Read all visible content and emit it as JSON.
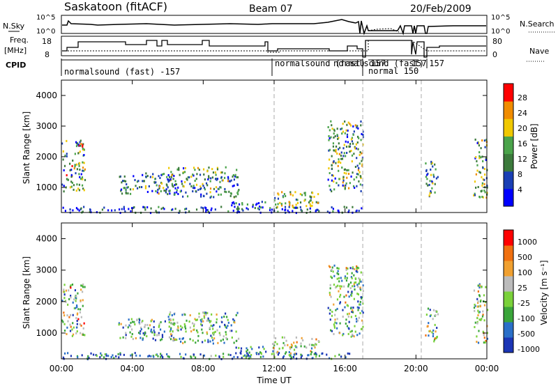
{
  "header": {
    "station": "Saskatoon (fitACF)",
    "beam": "Beam 07",
    "date": "20/Feb/2009"
  },
  "top_panels": {
    "nsky_label": "N.Sky",
    "nsky_ticks": [
      "10^5",
      "10^0"
    ],
    "nsearch_label": "N.Search",
    "freq_label_1": "Freq.",
    "freq_label_2": "[MHz]",
    "freq_ticks": [
      "18",
      "8"
    ],
    "nave_ticks": [
      "80",
      "0"
    ],
    "nave_label": "Nave",
    "cpid_label": "CPID",
    "cpid_segments": [
      "normalsound (fast) -157",
      "normalsound (fast) 157",
      "normalsound (fast) 157",
      "normal 150",
      "157"
    ]
  },
  "chart_data": [
    {
      "type": "heatmap",
      "name": "power-panel",
      "ylabel": "Slant Range [km]",
      "yticks": [
        "4000",
        "3000",
        "2000",
        "1000"
      ],
      "ylim": [
        180,
        4500
      ],
      "xticks": [
        "00:00",
        "04:00",
        "08:00",
        "12:00",
        "16:00",
        "20:00",
        "00:00"
      ],
      "xlim_hours": [
        0,
        24
      ],
      "colorbar_label": "Power [dB]",
      "colorbar_ticks": [
        "28",
        "24",
        "20",
        "16",
        "12",
        "8",
        "4"
      ],
      "colors": [
        "#0000ff",
        "#1a3fb4",
        "#3c7a3c",
        "#4aa34a",
        "#f0c800",
        "#f08c00",
        "#ff0000"
      ]
    },
    {
      "type": "heatmap",
      "name": "velocity-panel",
      "ylabel": "Slant Range [km]",
      "yticks": [
        "4000",
        "3000",
        "2000",
        "1000"
      ],
      "ylim": [
        180,
        4500
      ],
      "xticks": [
        "00:00",
        "04:00",
        "08:00",
        "12:00",
        "16:00",
        "20:00",
        "00:00"
      ],
      "xlim_hours": [
        0,
        24
      ],
      "xlabel": "Time UT",
      "colorbar_label": "Velocity [m s⁻¹]",
      "colorbar_ticks": [
        "1000",
        "500",
        "100",
        "25",
        "-25",
        "-100",
        "-500",
        "-1000"
      ],
      "colors": [
        "#1b35b5",
        "#2a6fc8",
        "#3aa53a",
        "#7ad13a",
        "#bbbbbb",
        "#f0a030",
        "#f07010",
        "#ff0000"
      ]
    }
  ]
}
